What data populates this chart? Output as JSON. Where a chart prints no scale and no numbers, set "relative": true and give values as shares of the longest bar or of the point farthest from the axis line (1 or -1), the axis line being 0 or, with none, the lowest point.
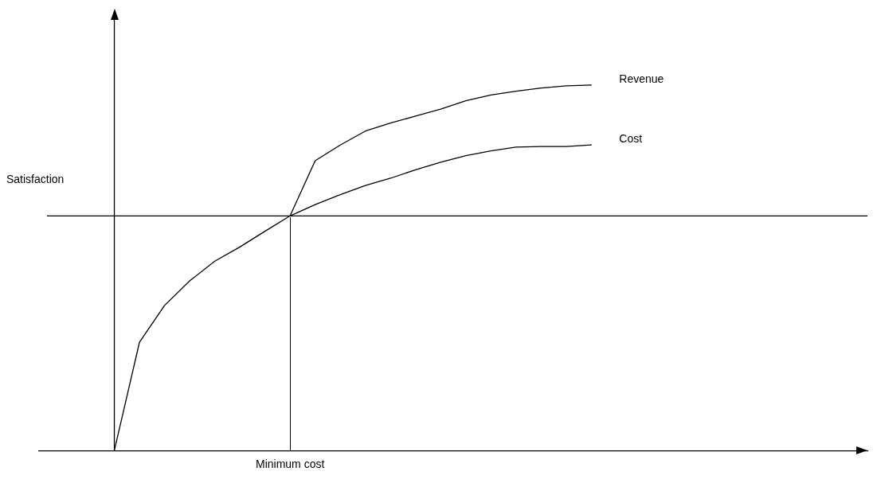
{
  "chart_data": {
    "type": "line",
    "relative": true,
    "marker": "none",
    "line_style": "solid",
    "categories": [
      null,
      null,
      null,
      null,
      null,
      null,
      null,
      null,
      null,
      null,
      null,
      null,
      null,
      null,
      null,
      null,
      null,
      null,
      null,
      null,
      null,
      null,
      null,
      null,
      null,
      null,
      null,
      null,
      null,
      null,
      null,
      null,
      null,
      null
    ],
    "series": [
      {
        "name": "Revenue",
        "color": "#000000",
        "values": [
          null,
          null,
          null,
          null,
          null,
          null,
          null,
          null,
          null,
          null,
          0.642,
          0.793,
          0.836,
          0.874,
          0.896,
          0.915,
          0.934,
          0.957,
          0.973,
          0.983,
          0.992,
          0.998,
          1,
          null,
          null,
          null,
          null,
          null,
          null,
          null,
          null,
          null,
          null,
          null
        ]
      },
      {
        "name": "Cost",
        "color": "#000000",
        "values": [
          null,
          null,
          null,
          0,
          0.296,
          0.397,
          0.464,
          0.518,
          0.557,
          0.6,
          0.642,
          0.673,
          0.7,
          0.725,
          0.745,
          0.768,
          0.789,
          0.807,
          0.82,
          0.83,
          0.832,
          0.832,
          0.836,
          null,
          null,
          null,
          null,
          null,
          null,
          null,
          null,
          null,
          null,
          null
        ]
      }
    ],
    "ref_lines": [
      {
        "axis": "y",
        "value": 0.642,
        "label": "Satisfaction",
        "color": "#000000"
      }
    ],
    "annotations": [
      "Minimum cost"
    ]
  }
}
